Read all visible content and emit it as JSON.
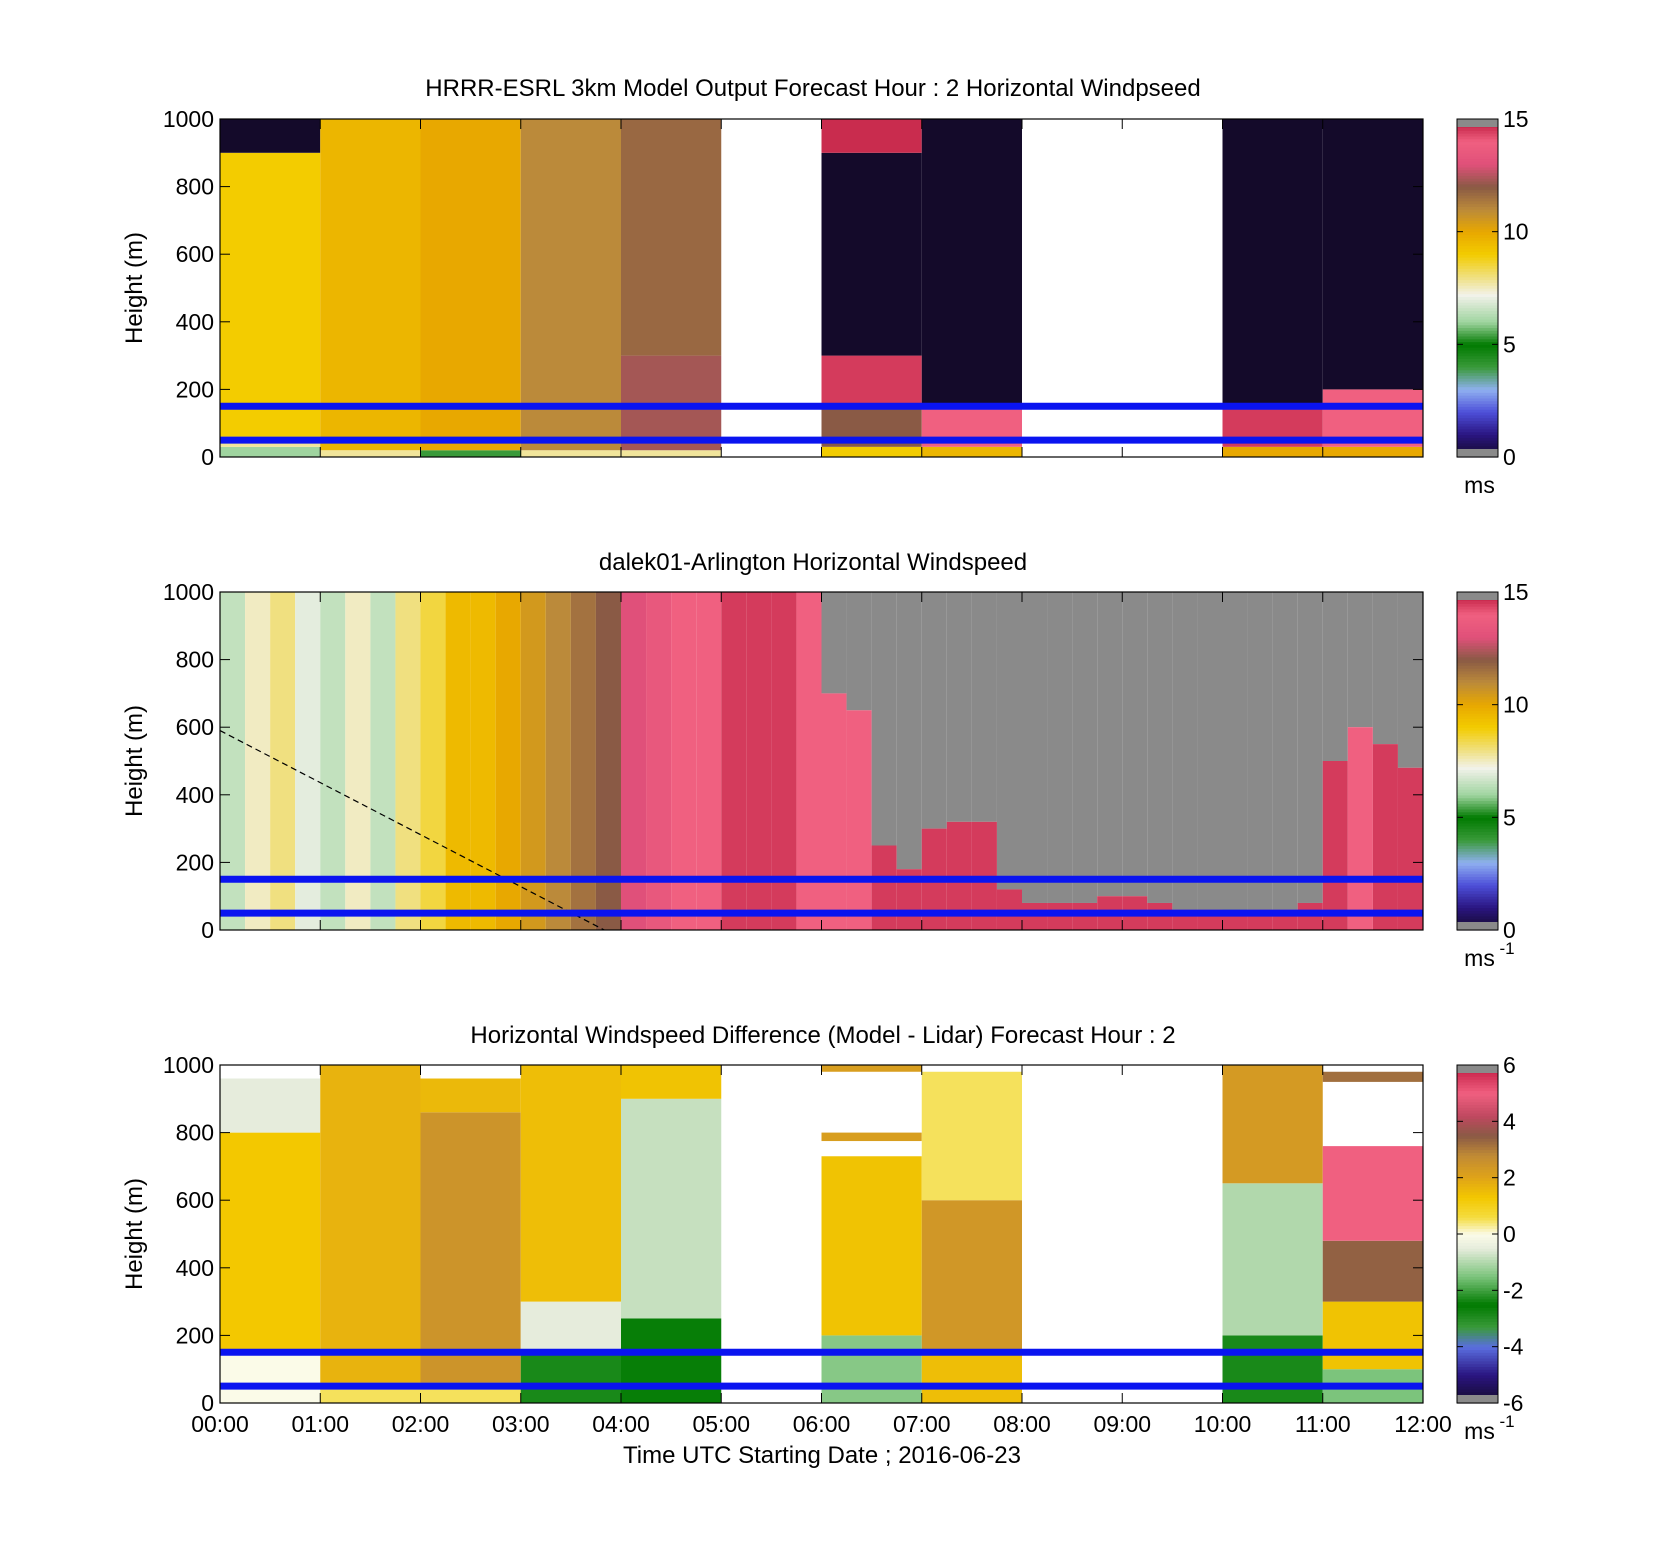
{
  "panels": [
    {
      "title": "HRRR-ESRL 3km Model Output   Forecast Hour : 2 Horizontal Windpseed",
      "ylabel": "Height (m)",
      "yticks": [
        "0",
        "200",
        "400",
        "600",
        "800",
        "1000"
      ],
      "cb_ticks": [
        "0",
        "5",
        "10",
        "15"
      ],
      "cb_unit": "ms",
      "cb_unit_sup": "",
      "colormap": "speed",
      "cbar_range": [
        0,
        15
      ]
    },
    {
      "title": "dalek01-Arlington  Horizontal Windspeed",
      "ylabel": "Height (m)",
      "yticks": [
        "0",
        "200",
        "400",
        "600",
        "800",
        "1000"
      ],
      "cb_ticks": [
        "0",
        "5",
        "10",
        "15"
      ],
      "cb_unit": "ms",
      "cb_unit_sup": "-1",
      "colormap": "speed",
      "cbar_range": [
        0,
        15
      ]
    },
    {
      "title": "Horizontal Windspeed Difference (Model - Lidar) Forecast Hour : 2",
      "ylabel": "Height (m)",
      "yticks": [
        "0",
        "200",
        "400",
        "600",
        "800",
        "1000"
      ],
      "cb_ticks": [
        "-6",
        "-4",
        "-2",
        "0",
        "2",
        "4",
        "6"
      ],
      "cb_unit": "ms",
      "cb_unit_sup": "-1",
      "colormap": "difference",
      "cbar_range": [
        -6,
        6
      ]
    }
  ],
  "xticks": [
    "00:00",
    "01:00",
    "02:00",
    "03:00",
    "04:00",
    "05:00",
    "06:00",
    "07:00",
    "08:00",
    "09:00",
    "10:00",
    "11:00",
    "12:00"
  ],
  "xlabel": "Time UTC  Starting Date ; 2016-06-23",
  "chart_data": [
    {
      "type": "heatmap",
      "title": "HRRR-ESRL 3km Model Output   Forecast Hour : 2 Horizontal Windpseed",
      "ylabel": "Height (m)",
      "xlim": [
        "00:00",
        "12:00"
      ],
      "ylim": [
        0,
        1000
      ],
      "colorbar": {
        "range": [
          0,
          15
        ],
        "unit": "ms"
      },
      "reference_lines_m": [
        50,
        150
      ],
      "hourly_columns": [
        {
          "time": "00:00",
          "segments": [
            {
              "from": 0,
              "to": 30,
              "value": 6
            },
            {
              "from": 30,
              "to": 60,
              "value": 7.8
            },
            {
              "from": 60,
              "to": 900,
              "value": 9
            },
            {
              "from": 900,
              "to": 1000,
              "value": 0
            }
          ]
        },
        {
          "time": "01:00",
          "segments": [
            {
              "from": 0,
              "to": 20,
              "value": 7.8
            },
            {
              "from": 20,
              "to": 1000,
              "value": 9.6
            }
          ]
        },
        {
          "time": "02:00",
          "segments": [
            {
              "from": 0,
              "to": 20,
              "value": 4
            },
            {
              "from": 20,
              "to": 1000,
              "value": 10
            }
          ]
        },
        {
          "time": "03:00",
          "segments": [
            {
              "from": 0,
              "to": 20,
              "value": 7.8
            },
            {
              "from": 20,
              "to": 1000,
              "value": 11
            }
          ]
        },
        {
          "time": "04:00",
          "segments": [
            {
              "from": 0,
              "to": 20,
              "value": 7.8
            },
            {
              "from": 20,
              "to": 300,
              "value": 12.3
            },
            {
              "from": 300,
              "to": 1000,
              "value": 11.7
            }
          ]
        },
        {
          "time": "05:00",
          "segments": []
        },
        {
          "time": "06:00",
          "segments": [
            {
              "from": 0,
              "to": 30,
              "value": 9
            },
            {
              "from": 30,
              "to": 150,
              "value": 12
            },
            {
              "from": 150,
              "to": 300,
              "value": 14.5
            },
            {
              "from": 300,
              "to": 900,
              "value": 0
            },
            {
              "from": 900,
              "to": 1000,
              "value": 14.7
            }
          ]
        },
        {
          "time": "07:00",
          "segments": [
            {
              "from": 0,
              "to": 30,
              "value": 9.6
            },
            {
              "from": 30,
              "to": 150,
              "value": 14
            },
            {
              "from": 150,
              "to": 1000,
              "value": 0
            }
          ]
        },
        {
          "time": "08:00",
          "segments": []
        },
        {
          "time": "09:00",
          "segments": []
        },
        {
          "time": "10:00",
          "segments": [
            {
              "from": 0,
              "to": 30,
              "value": 10
            },
            {
              "from": 30,
              "to": 150,
              "value": 14.5
            },
            {
              "from": 150,
              "to": 1000,
              "value": 0
            }
          ]
        },
        {
          "time": "11:00",
          "segments": [
            {
              "from": 0,
              "to": 30,
              "value": 10
            },
            {
              "from": 30,
              "to": 200,
              "value": 14
            },
            {
              "from": 200,
              "to": 1000,
              "value": 0
            }
          ]
        },
        {
          "time": "12:00",
          "segments": []
        }
      ]
    },
    {
      "type": "heatmap",
      "title": "dalek01-Arlington  Horizontal Windspeed",
      "ylabel": "Height (m)",
      "xlim": [
        "00:00",
        "12:00"
      ],
      "ylim": [
        0,
        1000
      ],
      "colorbar": {
        "range": [
          0,
          15
        ],
        "unit": "ms-1"
      },
      "reference_lines_m": [
        50,
        150
      ],
      "dashed_line": {
        "from": {
          "time": "00:00",
          "height": 590
        },
        "to": {
          "time": "03:50",
          "height": 0
        }
      },
      "columns_15min": [
        {
          "time": "00:00",
          "value": 6.5,
          "top": 1000
        },
        {
          "time": "00:15",
          "value": 7.5,
          "top": 1000
        },
        {
          "time": "00:30",
          "value": 8,
          "top": 1000
        },
        {
          "time": "00:45",
          "value": 7,
          "top": 1000
        },
        {
          "time": "01:00",
          "value": 6.5,
          "top": 1000
        },
        {
          "time": "01:15",
          "value": 7.5,
          "top": 1000
        },
        {
          "time": "01:30",
          "value": 6.5,
          "top": 1000
        },
        {
          "time": "01:45",
          "value": 8,
          "top": 1000
        },
        {
          "time": "02:00",
          "value": 8.5,
          "top": 1000
        },
        {
          "time": "02:15",
          "value": 9.5,
          "top": 1000
        },
        {
          "time": "02:30",
          "value": 9.5,
          "top": 1000
        },
        {
          "time": "02:45",
          "value": 10,
          "top": 1000
        },
        {
          "time": "03:00",
          "value": 10.5,
          "top": 1000
        },
        {
          "time": "03:15",
          "value": 11,
          "top": 1000
        },
        {
          "time": "03:30",
          "value": 11.5,
          "top": 1000
        },
        {
          "time": "03:45",
          "value": 12,
          "top": 1000
        },
        {
          "time": "04:00",
          "value": 13,
          "top": 1000
        },
        {
          "time": "04:15",
          "value": 13.5,
          "top": 1000
        },
        {
          "time": "04:30",
          "value": 14,
          "top": 1000
        },
        {
          "time": "04:45",
          "value": 14,
          "top": 1000
        },
        {
          "time": "05:00",
          "value": 14.5,
          "top": 1000
        },
        {
          "time": "05:15",
          "value": 14.5,
          "top": 1000
        },
        {
          "time": "05:30",
          "value": 14.5,
          "top": 1000
        },
        {
          "time": "05:45",
          "value": 14,
          "top": 1000
        },
        {
          "time": "06:00",
          "value": 14,
          "top": 700
        },
        {
          "time": "06:15",
          "value": 14,
          "top": 650
        },
        {
          "time": "06:30",
          "value": 14.5,
          "top": 250
        },
        {
          "time": "06:45",
          "value": 14.5,
          "top": 180
        },
        {
          "time": "07:00",
          "value": 14.5,
          "top": 300
        },
        {
          "time": "07:15",
          "value": 14.5,
          "top": 320
        },
        {
          "time": "07:30",
          "value": 14.5,
          "top": 320
        },
        {
          "time": "07:45",
          "value": 14.5,
          "top": 120
        },
        {
          "time": "08:00",
          "value": 14.5,
          "top": 80
        },
        {
          "time": "08:15",
          "value": 14.5,
          "top": 80
        },
        {
          "time": "08:30",
          "value": 14.5,
          "top": 80
        },
        {
          "time": "08:45",
          "value": 14.5,
          "top": 100
        },
        {
          "time": "09:00",
          "value": 14.5,
          "top": 100
        },
        {
          "time": "09:15",
          "value": 14.5,
          "top": 80
        },
        {
          "time": "09:30",
          "value": 14.5,
          "top": 60
        },
        {
          "time": "09:45",
          "value": 14.5,
          "top": 60
        },
        {
          "time": "10:00",
          "value": 14.5,
          "top": 50
        },
        {
          "time": "10:15",
          "value": 14.5,
          "top": 60
        },
        {
          "time": "10:30",
          "value": 14.5,
          "top": 60
        },
        {
          "time": "10:45",
          "value": 14.5,
          "top": 80
        },
        {
          "time": "11:00",
          "value": 14.5,
          "top": 500
        },
        {
          "time": "11:15",
          "value": 14,
          "top": 600
        },
        {
          "time": "11:30",
          "value": 14.5,
          "top": 550
        },
        {
          "time": "11:45",
          "value": 14.5,
          "top": 480
        }
      ]
    },
    {
      "type": "heatmap",
      "title": "Horizontal Windspeed Difference (Model - Lidar) Forecast Hour : 2",
      "ylabel": "Height (m)",
      "xlim": [
        "00:00",
        "12:00"
      ],
      "ylim": [
        0,
        1000
      ],
      "colorbar": {
        "range": [
          -6,
          6
        ],
        "unit": "ms-1"
      },
      "reference_lines_m": [
        50,
        150
      ],
      "hourly_columns": [
        {
          "time": "00:00",
          "segments": [
            {
              "from": 0,
              "to": 150,
              "value": 0
            },
            {
              "from": 150,
              "to": 800,
              "value": 1.3
            },
            {
              "from": 800,
              "to": 960,
              "value": -0.5
            }
          ]
        },
        {
          "time": "01:00",
          "segments": [
            {
              "from": 0,
              "to": 60,
              "value": 0.5
            },
            {
              "from": 60,
              "to": 1000,
              "value": 1.7
            }
          ]
        },
        {
          "time": "02:00",
          "segments": [
            {
              "from": 0,
              "to": 60,
              "value": 0.5
            },
            {
              "from": 60,
              "to": 860,
              "value": 2.5
            },
            {
              "from": 860,
              "to": 960,
              "value": 1.6
            }
          ]
        },
        {
          "time": "03:00",
          "segments": [
            {
              "from": 0,
              "to": 150,
              "value": -2.3
            },
            {
              "from": 150,
              "to": 300,
              "value": -0.5
            },
            {
              "from": 300,
              "to": 1000,
              "value": 1.5
            }
          ]
        },
        {
          "time": "04:00",
          "segments": [
            {
              "from": 0,
              "to": 250,
              "value": -2.6
            },
            {
              "from": 250,
              "to": 900,
              "value": -0.8
            },
            {
              "from": 900,
              "to": 1000,
              "value": 1.4
            }
          ]
        },
        {
          "time": "05:00",
          "segments": []
        },
        {
          "time": "06:00",
          "segments": [
            {
              "from": 0,
              "to": 200,
              "value": -1.4
            },
            {
              "from": 200,
              "to": 730,
              "value": 1.4
            },
            {
              "from": 775,
              "to": 800,
              "value": 2.2
            },
            {
              "from": 980,
              "to": 1000,
              "value": 2.2
            }
          ]
        },
        {
          "time": "07:00",
          "segments": [
            {
              "from": 0,
              "to": 150,
              "value": 1.5
            },
            {
              "from": 150,
              "to": 600,
              "value": 2.4
            },
            {
              "from": 600,
              "to": 980,
              "value": 0.5
            }
          ]
        },
        {
          "time": "08:00",
          "segments": []
        },
        {
          "time": "09:00",
          "segments": []
        },
        {
          "time": "10:00",
          "segments": [
            {
              "from": 0,
              "to": 200,
              "value": -2.3
            },
            {
              "from": 200,
              "to": 650,
              "value": -1
            },
            {
              "from": 650,
              "to": 1000,
              "value": 2.3
            }
          ]
        },
        {
          "time": "11:00",
          "segments": [
            {
              "from": 0,
              "to": 100,
              "value": -1.5
            },
            {
              "from": 100,
              "to": 300,
              "value": 1.4
            },
            {
              "from": 300,
              "to": 480,
              "value": 3.4
            },
            {
              "from": 480,
              "to": 760,
              "value": 5
            },
            {
              "from": 950,
              "to": 980,
              "value": 3.2
            }
          ]
        },
        {
          "time": "12:00",
          "segments": []
        }
      ]
    }
  ]
}
